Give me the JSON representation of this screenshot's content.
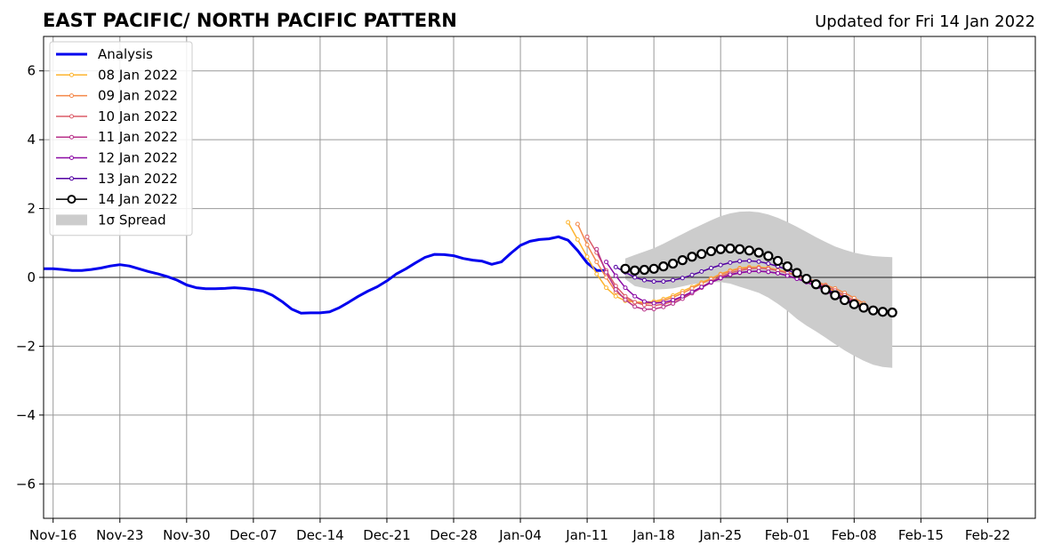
{
  "chart_data": {
    "type": "line",
    "title": "EAST PACIFIC/ NORTH PACIFIC PATTERN",
    "subtitle": "Updated for Fri 14 Jan 2022",
    "xlabel": "",
    "ylabel": "",
    "xlim": [
      "2021-11-15",
      "2022-02-27"
    ],
    "ylim": [
      -7,
      7
    ],
    "grid": true,
    "legend_position": "top-left",
    "x_ticks": [
      {
        "date": "2021-11-16",
        "label": "Nov-16"
      },
      {
        "date": "2021-11-23",
        "label": "Nov-23"
      },
      {
        "date": "2021-11-30",
        "label": "Nov-30"
      },
      {
        "date": "2021-12-07",
        "label": "Dec-07"
      },
      {
        "date": "2021-12-14",
        "label": "Dec-14"
      },
      {
        "date": "2021-12-21",
        "label": "Dec-21"
      },
      {
        "date": "2021-12-28",
        "label": "Dec-28"
      },
      {
        "date": "2022-01-04",
        "label": "Jan-04"
      },
      {
        "date": "2022-01-11",
        "label": "Jan-11"
      },
      {
        "date": "2022-01-18",
        "label": "Jan-18"
      },
      {
        "date": "2022-01-25",
        "label": "Jan-25"
      },
      {
        "date": "2022-02-01",
        "label": "Feb-01"
      },
      {
        "date": "2022-02-08",
        "label": "Feb-08"
      },
      {
        "date": "2022-02-15",
        "label": "Feb-15"
      },
      {
        "date": "2022-02-22",
        "label": "Feb-22"
      }
    ],
    "y_ticks": [
      {
        "value": 6,
        "label": "6"
      },
      {
        "value": 4,
        "label": "4"
      },
      {
        "value": 2,
        "label": "2"
      },
      {
        "value": 0,
        "label": "0"
      },
      {
        "value": -2,
        "label": "−2"
      },
      {
        "value": -4,
        "label": "−4"
      },
      {
        "value": -6,
        "label": "−6"
      }
    ],
    "analysis": {
      "name": "Analysis",
      "color": "#0000ee",
      "points": [
        [
          "2021-11-15",
          0.25
        ],
        [
          "2021-11-16",
          0.25
        ],
        [
          "2021-11-17",
          0.23
        ],
        [
          "2021-11-18",
          0.2
        ],
        [
          "2021-11-19",
          0.2
        ],
        [
          "2021-11-20",
          0.23
        ],
        [
          "2021-11-21",
          0.27
        ],
        [
          "2021-11-22",
          0.33
        ],
        [
          "2021-11-23",
          0.37
        ],
        [
          "2021-11-24",
          0.33
        ],
        [
          "2021-11-25",
          0.25
        ],
        [
          "2021-11-26",
          0.17
        ],
        [
          "2021-11-27",
          0.1
        ],
        [
          "2021-11-28",
          0.02
        ],
        [
          "2021-11-29",
          -0.08
        ],
        [
          "2021-11-30",
          -0.22
        ],
        [
          "2021-12-01",
          -0.3
        ],
        [
          "2021-12-02",
          -0.33
        ],
        [
          "2021-12-03",
          -0.33
        ],
        [
          "2021-12-04",
          -0.32
        ],
        [
          "2021-12-05",
          -0.3
        ],
        [
          "2021-12-06",
          -0.32
        ],
        [
          "2021-12-07",
          -0.35
        ],
        [
          "2021-12-08",
          -0.4
        ],
        [
          "2021-12-09",
          -0.52
        ],
        [
          "2021-12-10",
          -0.7
        ],
        [
          "2021-12-11",
          -0.92
        ],
        [
          "2021-12-12",
          -1.04
        ],
        [
          "2021-12-13",
          -1.03
        ],
        [
          "2021-12-14",
          -1.03
        ],
        [
          "2021-12-15",
          -1.0
        ],
        [
          "2021-12-16",
          -0.88
        ],
        [
          "2021-12-17",
          -0.72
        ],
        [
          "2021-12-18",
          -0.55
        ],
        [
          "2021-12-19",
          -0.4
        ],
        [
          "2021-12-20",
          -0.27
        ],
        [
          "2021-12-21",
          -0.1
        ],
        [
          "2021-12-22",
          0.1
        ],
        [
          "2021-12-23",
          0.25
        ],
        [
          "2021-12-24",
          0.42
        ],
        [
          "2021-12-25",
          0.58
        ],
        [
          "2021-12-26",
          0.67
        ],
        [
          "2021-12-27",
          0.66
        ],
        [
          "2021-12-28",
          0.63
        ],
        [
          "2021-12-29",
          0.55
        ],
        [
          "2021-12-30",
          0.5
        ],
        [
          "2021-12-31",
          0.47
        ],
        [
          "2022-01-01",
          0.38
        ],
        [
          "2022-01-02",
          0.45
        ],
        [
          "2022-01-03",
          0.7
        ],
        [
          "2022-01-04",
          0.93
        ],
        [
          "2022-01-05",
          1.05
        ],
        [
          "2022-01-06",
          1.1
        ],
        [
          "2022-01-07",
          1.12
        ],
        [
          "2022-01-08",
          1.18
        ],
        [
          "2022-01-09",
          1.08
        ],
        [
          "2022-01-10",
          0.78
        ],
        [
          "2022-01-11",
          0.42
        ],
        [
          "2022-01-12",
          0.2
        ],
        [
          "2022-01-13",
          0.2
        ]
      ]
    },
    "forecasts": [
      {
        "name": "08 Jan 2022",
        "color": "#fdb42f",
        "start": "2022-01-09",
        "values": [
          1.6,
          1.1,
          0.6,
          0.1,
          -0.3,
          -0.55,
          -0.68,
          -0.72,
          -0.72,
          -0.7,
          -0.63,
          -0.53,
          -0.4,
          -0.28,
          -0.15,
          -0.03,
          0.1,
          0.2,
          0.27,
          0.3,
          0.3,
          0.28,
          0.22,
          0.15,
          0.05,
          -0.05,
          -0.15,
          -0.28,
          -0.42,
          -0.55,
          -0.68,
          -0.8
        ]
      },
      {
        "name": "09 Jan 2022",
        "color": "#f48849",
        "start": "2022-01-10",
        "values": [
          1.55,
          0.95,
          0.45,
          0.0,
          -0.42,
          -0.62,
          -0.73,
          -0.76,
          -0.74,
          -0.68,
          -0.58,
          -0.46,
          -0.32,
          -0.18,
          -0.05,
          0.08,
          0.18,
          0.25,
          0.28,
          0.28,
          0.25,
          0.2,
          0.13,
          0.05,
          -0.03,
          -0.12,
          -0.22,
          -0.32,
          -0.45,
          -0.6,
          -0.75
        ]
      },
      {
        "name": "10 Jan 2022",
        "color": "#db5c68",
        "start": "2022-01-11",
        "values": [
          1.18,
          0.72,
          0.2,
          -0.25,
          -0.55,
          -0.72,
          -0.8,
          -0.82,
          -0.78,
          -0.7,
          -0.58,
          -0.44,
          -0.28,
          -0.12,
          0.02,
          0.13,
          0.2,
          0.25,
          0.27,
          0.25,
          0.2,
          0.13,
          0.05,
          -0.05,
          -0.15,
          -0.25,
          -0.38,
          -0.52,
          -0.68,
          -0.85,
          -0.95
        ]
      },
      {
        "name": "11 Jan 2022",
        "color": "#b83289",
        "start": "2022-01-12",
        "values": [
          0.82,
          0.15,
          -0.35,
          -0.65,
          -0.85,
          -0.93,
          -0.92,
          -0.86,
          -0.76,
          -0.62,
          -0.46,
          -0.3,
          -0.15,
          -0.03,
          0.07,
          0.13,
          0.17,
          0.18,
          0.16,
          0.12,
          0.05,
          -0.03,
          -0.12,
          -0.22,
          -0.33,
          -0.45,
          -0.58,
          -0.72,
          -0.85,
          -0.97,
          -1.05
        ]
      },
      {
        "name": "12 Jan 2022",
        "color": "#8b0aa5",
        "start": "2022-01-13",
        "values": [
          0.45,
          0.05,
          -0.3,
          -0.55,
          -0.7,
          -0.75,
          -0.73,
          -0.66,
          -0.55,
          -0.42,
          -0.28,
          -0.14,
          -0.02,
          0.08,
          0.14,
          0.17,
          0.18,
          0.16,
          0.12,
          0.05,
          -0.04,
          -0.14,
          -0.26,
          -0.4,
          -0.54,
          -0.68,
          -0.8,
          -0.9,
          -0.98,
          -1.03
        ]
      },
      {
        "name": "13 Jan 2022",
        "color": "#5302a3",
        "start": "2022-01-14",
        "values": [
          0.3,
          0.15,
          0.0,
          -0.08,
          -0.12,
          -0.12,
          -0.08,
          -0.02,
          0.07,
          0.17,
          0.27,
          0.36,
          0.43,
          0.47,
          0.48,
          0.46,
          0.4,
          0.32,
          0.22,
          0.1,
          -0.03,
          -0.17,
          -0.32,
          -0.47,
          -0.62,
          -0.76,
          -0.88,
          -0.96,
          -1.02
        ]
      }
    ],
    "current_forecast": {
      "name": "14 Jan 2022",
      "color": "#000000",
      "start": "2022-01-15",
      "values": [
        0.25,
        0.2,
        0.22,
        0.25,
        0.32,
        0.4,
        0.5,
        0.6,
        0.68,
        0.76,
        0.82,
        0.84,
        0.82,
        0.78,
        0.72,
        0.62,
        0.48,
        0.32,
        0.13,
        -0.04,
        -0.2,
        -0.36,
        -0.52,
        -0.66,
        -0.78,
        -0.88,
        -0.96,
        -1.0,
        -1.02
      ]
    },
    "spread": {
      "name": "1σ Spread",
      "color": "#cccccc",
      "start": "2022-01-15",
      "upper": [
        0.55,
        0.65,
        0.75,
        0.85,
        0.98,
        1.12,
        1.26,
        1.4,
        1.53,
        1.66,
        1.78,
        1.86,
        1.91,
        1.92,
        1.89,
        1.83,
        1.73,
        1.61,
        1.47,
        1.32,
        1.17,
        1.03,
        0.9,
        0.8,
        0.72,
        0.66,
        0.62,
        0.6,
        0.59
      ],
      "lower": [
        -0.05,
        -0.25,
        -0.31,
        -0.35,
        -0.34,
        -0.32,
        -0.26,
        -0.2,
        -0.17,
        -0.14,
        -0.14,
        -0.18,
        -0.27,
        -0.36,
        -0.45,
        -0.59,
        -0.77,
        -0.97,
        -1.21,
        -1.4,
        -1.57,
        -1.75,
        -1.94,
        -2.12,
        -2.28,
        -2.42,
        -2.54,
        -2.6,
        -2.63
      ]
    }
  }
}
